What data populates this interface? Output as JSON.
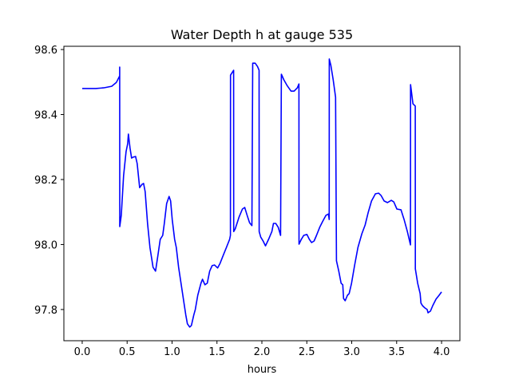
{
  "chart_data": {
    "type": "line",
    "title": "Water Depth h at gauge 535",
    "xlabel": "hours",
    "ylabel": "",
    "xlim": [
      -0.204,
      4.204
    ],
    "ylim": [
      97.704,
      98.61
    ],
    "grid": false,
    "xticks": [
      0.0,
      0.5,
      1.0,
      1.5,
      2.0,
      2.5,
      3.0,
      3.5,
      4.0
    ],
    "xtick_labels": [
      "0.0",
      "0.5",
      "1.0",
      "1.5",
      "2.0",
      "2.5",
      "3.0",
      "3.5",
      "4.0"
    ],
    "yticks": [
      97.8,
      98.0,
      98.2,
      98.4,
      98.6
    ],
    "ytick_labels": [
      "97.8",
      "98.0",
      "98.2",
      "98.4",
      "98.6"
    ],
    "series": [
      {
        "name": "h",
        "color": "#0000ff",
        "x": [
          0,
          0.151,
          0.239,
          0.328,
          0.381,
          0.417,
          0.417,
          0.418,
          0.435,
          0.461,
          0.488,
          0.506,
          0.514,
          0.532,
          0.55,
          0.568,
          0.594,
          0.612,
          0.639,
          0.665,
          0.683,
          0.701,
          0.727,
          0.754,
          0.789,
          0.816,
          0.843,
          0.869,
          0.896,
          0.914,
          0.94,
          0.967,
          0.984,
          1.002,
          1.029,
          1.047,
          1.073,
          1.1,
          1.126,
          1.153,
          1.171,
          1.197,
          1.215,
          1.242,
          1.259,
          1.286,
          1.322,
          1.339,
          1.366,
          1.392,
          1.419,
          1.446,
          1.472,
          1.508,
          1.534,
          1.57,
          1.605,
          1.641,
          1.65,
          1.651,
          1.685,
          1.686,
          1.703,
          1.747,
          1.783,
          1.809,
          1.836,
          1.863,
          1.889,
          1.898,
          1.925,
          1.951,
          1.969,
          1.97,
          1.987,
          2.013,
          2.04,
          2.075,
          2.111,
          2.129,
          2.155,
          2.182,
          2.208,
          2.217,
          2.244,
          2.279,
          2.324,
          2.359,
          2.395,
          2.412,
          2.413,
          2.439,
          2.466,
          2.501,
          2.528,
          2.554,
          2.581,
          2.608,
          2.643,
          2.678,
          2.714,
          2.741,
          2.749,
          2.75,
          2.768,
          2.794,
          2.82,
          2.83,
          2.856,
          2.882,
          2.9,
          2.909,
          2.927,
          2.953,
          2.971,
          2.998,
          3.033,
          3.069,
          3.113,
          3.149,
          3.184,
          3.22,
          3.264,
          3.299,
          3.326,
          3.361,
          3.397,
          3.441,
          3.468,
          3.503,
          3.548,
          3.583,
          3.619,
          3.654,
          3.655,
          3.681,
          3.707,
          3.708,
          3.734,
          3.761,
          3.77,
          3.787,
          3.814,
          3.84,
          3.849,
          3.876,
          3.902,
          3.938,
          3.973,
          4.0
        ],
        "y": [
          98.48,
          98.48,
          98.482,
          98.487,
          98.499,
          98.519,
          98.546,
          98.055,
          98.09,
          98.212,
          98.286,
          98.31,
          98.34,
          98.298,
          98.266,
          98.269,
          98.271,
          98.249,
          98.175,
          98.185,
          98.188,
          98.163,
          98.065,
          97.991,
          97.93,
          97.918,
          97.967,
          98.016,
          98.028,
          98.065,
          98.126,
          98.148,
          98.134,
          98.077,
          98.016,
          97.991,
          97.93,
          97.881,
          97.832,
          97.783,
          97.756,
          97.746,
          97.751,
          97.783,
          97.8,
          97.844,
          97.881,
          97.893,
          97.876,
          97.881,
          97.918,
          97.935,
          97.937,
          97.928,
          97.942,
          97.967,
          97.991,
          98.016,
          98.028,
          98.521,
          98.536,
          98.04,
          98.048,
          98.085,
          98.109,
          98.114,
          98.09,
          98.067,
          98.058,
          98.558,
          98.558,
          98.548,
          98.536,
          98.04,
          98.023,
          98.011,
          97.996,
          98.016,
          98.04,
          98.065,
          98.065,
          98.053,
          98.028,
          98.524,
          98.507,
          98.49,
          98.472,
          98.472,
          98.482,
          98.494,
          98.001,
          98.016,
          98.028,
          98.031,
          98.016,
          98.006,
          98.011,
          98.028,
          98.053,
          98.072,
          98.09,
          98.094,
          98.077,
          98.571,
          98.551,
          98.507,
          98.453,
          97.95,
          97.918,
          97.881,
          97.876,
          97.834,
          97.827,
          97.844,
          97.849,
          97.881,
          97.937,
          97.991,
          98.033,
          98.06,
          98.099,
          98.134,
          98.156,
          98.158,
          98.151,
          98.134,
          98.129,
          98.136,
          98.131,
          98.109,
          98.107,
          98.077,
          98.04,
          97.999,
          98.492,
          98.433,
          98.426,
          97.925,
          97.881,
          97.849,
          97.82,
          97.812,
          97.805,
          97.8,
          97.79,
          97.795,
          97.812,
          97.832,
          97.844,
          97.854
        ]
      }
    ]
  }
}
